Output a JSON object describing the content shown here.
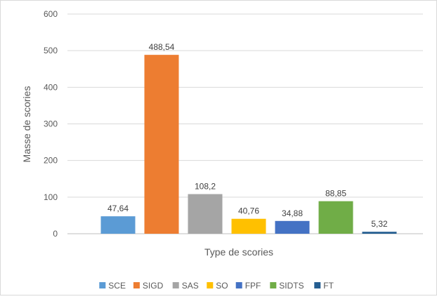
{
  "chart_data": {
    "type": "bar",
    "title": "",
    "xlabel": "Type de scories",
    "ylabel": "Masse de scories",
    "ylim": [
      0,
      600
    ],
    "yticks": [
      0,
      100,
      200,
      300,
      400,
      500,
      600
    ],
    "grid": true,
    "legend_position": "bottom",
    "categories": [
      "SCE",
      "SIGD",
      "SAS",
      "SO",
      "FPF",
      "SIDTS",
      "FT"
    ],
    "values": [
      47.64,
      488.54,
      108.2,
      40.76,
      34.88,
      88.85,
      5.32
    ],
    "value_labels": [
      "47,64",
      "488,54",
      "108,2",
      "40,76",
      "34,88",
      "88,85",
      "5,32"
    ],
    "colors": [
      "#5B9BD5",
      "#ED7D31",
      "#A5A5A5",
      "#FFC000",
      "#4472C4",
      "#70AD47",
      "#255E91"
    ]
  }
}
